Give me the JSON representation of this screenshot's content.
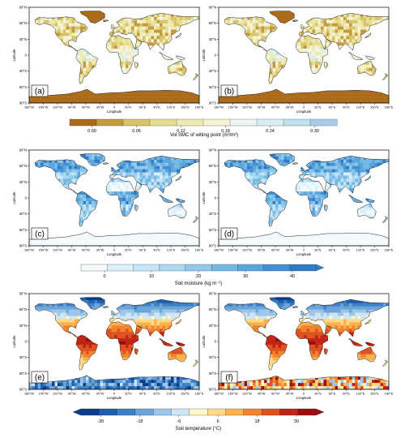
{
  "axis": {
    "lat_ticks": [
      "90°N",
      "60°N",
      "30°N",
      "0",
      "30°S",
      "60°S",
      "90°S"
    ],
    "lon_ticks": [
      "180°W",
      "150°W",
      "120°W",
      "90°W",
      "60°W",
      "30°W",
      "0",
      "30°E",
      "60°E",
      "90°E",
      "120°E",
      "150°E",
      "180°E"
    ],
    "xlabel": "Longitude",
    "ylabel": "Latitude"
  },
  "panels": [
    {
      "label": "(a)",
      "row": 0,
      "col": 0,
      "field": "wilting"
    },
    {
      "label": "(b)",
      "row": 0,
      "col": 1,
      "field": "wilting"
    },
    {
      "label": "(c)",
      "row": 1,
      "col": 0,
      "field": "moisture"
    },
    {
      "label": "(d)",
      "row": 1,
      "col": 1,
      "field": "moisture"
    },
    {
      "label": "(e)",
      "row": 2,
      "col": 0,
      "field": "temperature"
    },
    {
      "label": "(f)",
      "row": 2,
      "col": 1,
      "field": "temperature"
    }
  ],
  "colorbars": {
    "wilting": {
      "title": "Vol SMC of wilting point (m³/m³)",
      "ticks": [
        "0.00",
        "0.06",
        "0.12",
        "0.18",
        "0.24",
        "0.30"
      ],
      "colors": [
        "#ad6b1a",
        "#c49a3f",
        "#d8c26a",
        "#e6de8e",
        "#eeeab4",
        "#f4f3d6",
        "#eef5f2",
        "#d9eef2",
        "#bfe2ee",
        "#a8cdea"
      ]
    },
    "moisture": {
      "title": "Soil moisture (kg m⁻²)",
      "ticks": [
        "0",
        "10",
        "20",
        "30",
        "40"
      ],
      "colors": [
        "#f2fafe",
        "#ddf1fb",
        "#c6e6f7",
        "#acd9f2",
        "#90c9ec",
        "#76b8e4",
        "#5aa5dc",
        "#4390d2",
        "#2f7bc6"
      ]
    },
    "temperature": {
      "title": "Soil temperature (°C)",
      "ticks": [
        "-30",
        "-18",
        "-6",
        "6",
        "18",
        "30"
      ],
      "colors": [
        "#0d3b8c",
        "#1f5fae",
        "#3d80c6",
        "#6aa4d8",
        "#9cc6e8",
        "#cfe5f2",
        "#fff7c6",
        "#ffd98a",
        "#fdb14c",
        "#f3832c",
        "#de5220",
        "#c02417",
        "#9a0c0e"
      ]
    }
  }
}
